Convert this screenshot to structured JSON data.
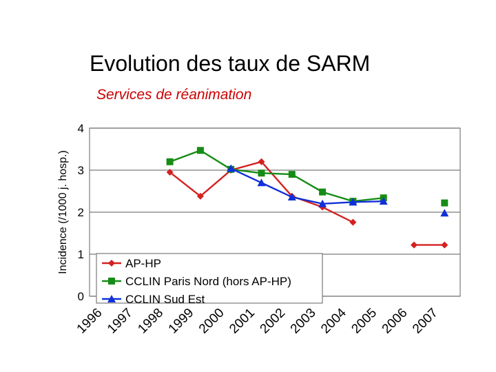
{
  "chart_data": {
    "type": "line",
    "title": "Evolution des taux de SARM",
    "subtitle": "Services de réanimation",
    "xlabel": "",
    "ylabel": "Incidence (/1000 j. hosp.)",
    "x": [
      "1996",
      "1997",
      "1998",
      "1999",
      "2000",
      "2001",
      "2002",
      "2003",
      "2004",
      "2005",
      "2006",
      "2007"
    ],
    "yticks": [
      "0",
      "1",
      "2",
      "3",
      "4"
    ],
    "ylim": [
      0,
      4
    ],
    "grid": "horizontal",
    "legend_position": "bottom-left",
    "series": [
      {
        "name": "AP-HP",
        "color": "#d42020",
        "marker": "diamond",
        "values": [
          null,
          null,
          2.95,
          2.38,
          3.0,
          3.2,
          2.38,
          2.12,
          1.76,
          null,
          1.22,
          1.22
        ]
      },
      {
        "name": "CCLIN Paris Nord (hors AP-HP)",
        "color": "#168c16",
        "marker": "square",
        "values": [
          null,
          null,
          3.2,
          3.47,
          3.02,
          2.93,
          2.9,
          2.48,
          2.26,
          2.34,
          null,
          2.22
        ]
      },
      {
        "name": "CCLIN Sud Est",
        "color": "#1030d8",
        "marker": "triangle",
        "values": [
          null,
          null,
          null,
          null,
          3.04,
          2.7,
          2.36,
          2.2,
          2.24,
          2.26,
          null,
          1.98
        ]
      }
    ]
  }
}
